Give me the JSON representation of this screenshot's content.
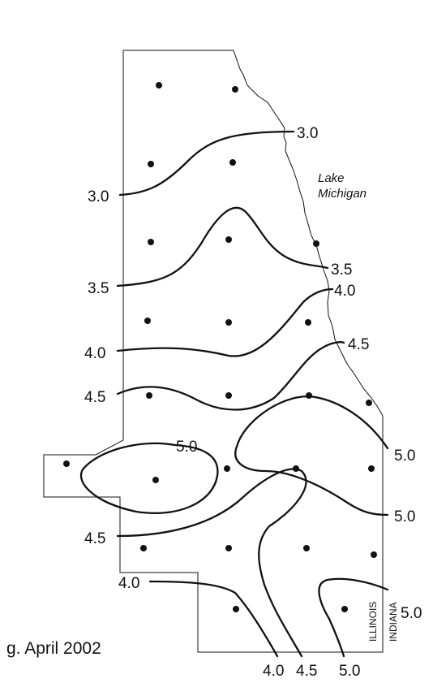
{
  "caption": "g. April 2002",
  "lake_label": [
    "Lake",
    "Michigan"
  ],
  "states": {
    "west": "ILLINOIS",
    "east": "INDIANA"
  },
  "contour_labels": [
    "3.0",
    "3.0",
    "3.5",
    "3.5",
    "4.0",
    "4.0",
    "4.5",
    "4.5",
    "5.0",
    "5.0",
    "5.0",
    "4.5",
    "4.0",
    "5.0",
    "4.0",
    "4.5",
    "5.0"
  ],
  "station_count": 23
}
